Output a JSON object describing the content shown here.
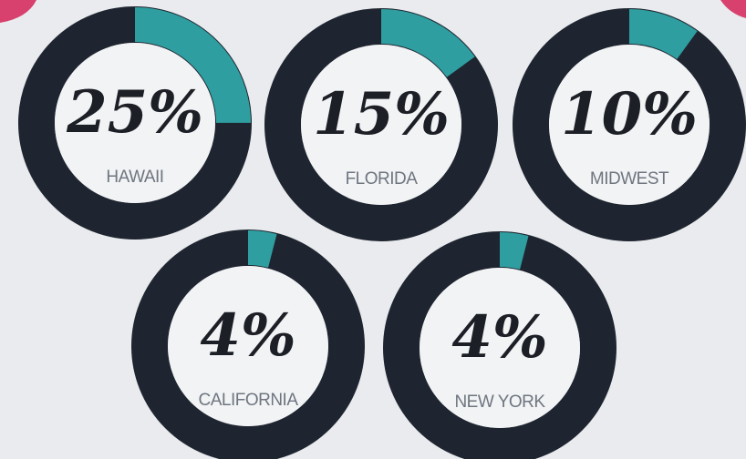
{
  "chart_data": [
    {
      "type": "donut",
      "title": "HAWAII",
      "values": [
        25
      ],
      "value_labels": [
        "25%"
      ],
      "color": "#2f9ea0",
      "track_color": "#1f2530"
    },
    {
      "type": "donut",
      "title": "FLORIDA",
      "values": [
        15
      ],
      "value_labels": [
        "15%"
      ],
      "color": "#2f9ea0",
      "track_color": "#1f2530"
    },
    {
      "type": "donut",
      "title": "MIDWEST",
      "values": [
        10
      ],
      "value_labels": [
        "10%"
      ],
      "color": "#2f9ea0",
      "track_color": "#1f2530"
    },
    {
      "type": "donut",
      "title": "CALIFORNIA",
      "values": [
        4
      ],
      "value_labels": [
        "4%"
      ],
      "color": "#2f9ea0",
      "track_color": "#1f2530"
    },
    {
      "type": "donut",
      "title": "NEW YORK",
      "values": [
        4
      ],
      "value_labels": [
        "4%"
      ],
      "color": "#2f9ea0",
      "track_color": "#1f2530"
    }
  ]
}
